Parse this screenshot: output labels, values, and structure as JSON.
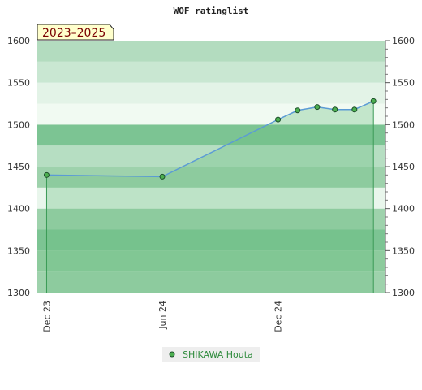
{
  "chart_data": {
    "type": "area",
    "title": "WOF ratinglist",
    "badge": "2023–2025",
    "xlabel": "",
    "ylabel": "",
    "x_ticks": [
      {
        "label": "Dec 23",
        "date": "2023-12-01"
      },
      {
        "label": "Jun 24",
        "date": "2024-06-01"
      },
      {
        "label": "Dec 24",
        "date": "2024-12-01"
      }
    ],
    "xlim": [
      "2023-11-15",
      "2025-05-20"
    ],
    "ylim": [
      1300,
      1600
    ],
    "y_ticks": [
      1300,
      1350,
      1400,
      1450,
      1500,
      1550,
      1600
    ],
    "grid": true,
    "legend_position": "bottom-center",
    "series": [
      {
        "name": "SHIKAWA Houta",
        "x": [
          "2023-12-01",
          "2024-06-01",
          "2024-12-01",
          "2025-01-01",
          "2025-02-01",
          "2025-03-01",
          "2025-04-01",
          "2025-05-01"
        ],
        "values": [
          1440,
          1438,
          1506,
          1517,
          1521,
          1518,
          1518,
          1528
        ]
      }
    ],
    "colors": {
      "line": "#5b9bd5",
      "area": "#6cbf84",
      "marker": "#4caf50",
      "band_light": "#f1faf2",
      "band_dark": "#7cc493",
      "badge_bg": "#ffffcc",
      "badge_text": "#7a0000",
      "legend_text": "#2e8b3c"
    }
  }
}
